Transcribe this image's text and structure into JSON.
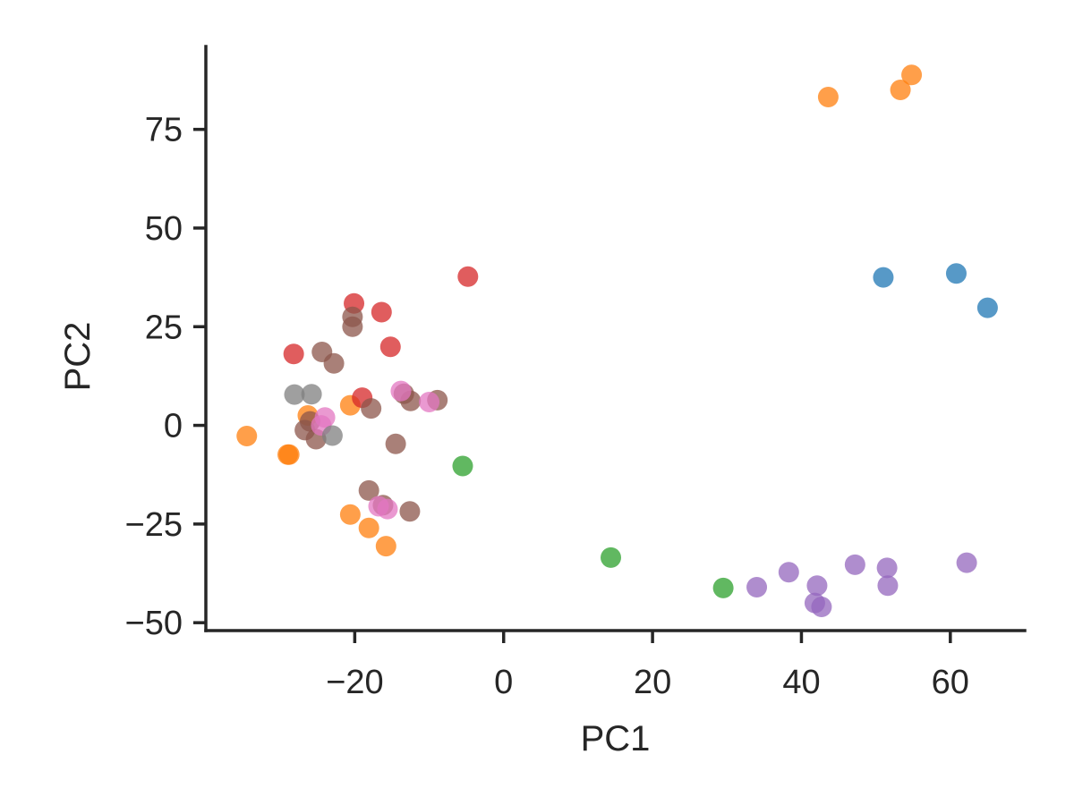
{
  "chart_data": {
    "type": "scatter",
    "title": "",
    "xlabel": "PC1",
    "ylabel": "PC2",
    "xlim": [
      -40,
      70
    ],
    "ylim": [
      -52,
      96
    ],
    "xticks": [
      -20,
      0,
      20,
      40,
      60
    ],
    "yticks": [
      -50,
      -25,
      0,
      25,
      50,
      75
    ],
    "xtick_labels": [
      "−20",
      "0",
      "20",
      "40",
      "60"
    ],
    "ytick_labels": [
      "−50",
      "−25",
      "0",
      "25",
      "50",
      "75"
    ],
    "grid": false,
    "legend": "none",
    "series": [
      {
        "color": "#1f77b4",
        "points": [
          [
            51,
            37.5
          ],
          [
            60.8,
            38.5
          ],
          [
            65,
            29.8
          ]
        ]
      },
      {
        "color": "#ff7f0e",
        "points": [
          [
            43.6,
            83.2
          ],
          [
            53.3,
            85
          ],
          [
            54.8,
            88.8
          ],
          [
            -34.5,
            -2.7
          ],
          [
            -29,
            -7.4
          ],
          [
            -28.8,
            -7.4
          ],
          [
            -26.3,
            2.5
          ],
          [
            -20.6,
            5.1
          ],
          [
            -20.6,
            -22.6
          ],
          [
            -18.1,
            -26
          ],
          [
            -15.8,
            -30.6
          ]
        ]
      },
      {
        "color": "#2ca02c",
        "points": [
          [
            -5.5,
            -10.3
          ],
          [
            14.4,
            -33.5
          ],
          [
            29.5,
            -41.2
          ]
        ]
      },
      {
        "color": "#d62728",
        "points": [
          [
            -28.2,
            18.1
          ],
          [
            -20.1,
            30.9
          ],
          [
            -16.4,
            28.7
          ],
          [
            -15.2,
            19.9
          ],
          [
            -4.8,
            37.7
          ],
          [
            -19,
            7
          ]
        ]
      },
      {
        "color": "#9467bd",
        "points": [
          [
            34,
            -41
          ],
          [
            38.3,
            -37.2
          ],
          [
            41.8,
            -45
          ],
          [
            42.7,
            -46
          ],
          [
            42.1,
            -40.6
          ],
          [
            47.2,
            -35.3
          ],
          [
            51.5,
            -36.1
          ],
          [
            51.6,
            -40.6
          ],
          [
            62.2,
            -34.8
          ]
        ]
      },
      {
        "color": "#8c564b",
        "points": [
          [
            -24.4,
            18.6
          ],
          [
            -22.8,
            15.7
          ],
          [
            -20.3,
            27.5
          ],
          [
            -20.3,
            25
          ],
          [
            -17.8,
            4.3
          ],
          [
            -13.4,
            8
          ],
          [
            -12.5,
            6.2
          ],
          [
            -8.9,
            6.4
          ],
          [
            -14.5,
            -4.7
          ],
          [
            -26.7,
            -1.2
          ],
          [
            -25.2,
            -3.5
          ],
          [
            -18.1,
            -16.5
          ],
          [
            -16.2,
            -20.2
          ],
          [
            -12.6,
            -21.8
          ],
          [
            -26,
            1
          ]
        ]
      },
      {
        "color": "#e377c2",
        "points": [
          [
            -24,
            2
          ],
          [
            -24.5,
            0
          ],
          [
            -13.8,
            8.7
          ],
          [
            -10,
            5.9
          ],
          [
            -15.6,
            -21.2
          ],
          [
            -16.8,
            -20.5
          ]
        ]
      },
      {
        "color": "#7f7f7f",
        "points": [
          [
            -28.1,
            7.8
          ],
          [
            -25.8,
            7.9
          ],
          [
            -23,
            -2.6
          ]
        ]
      }
    ]
  }
}
